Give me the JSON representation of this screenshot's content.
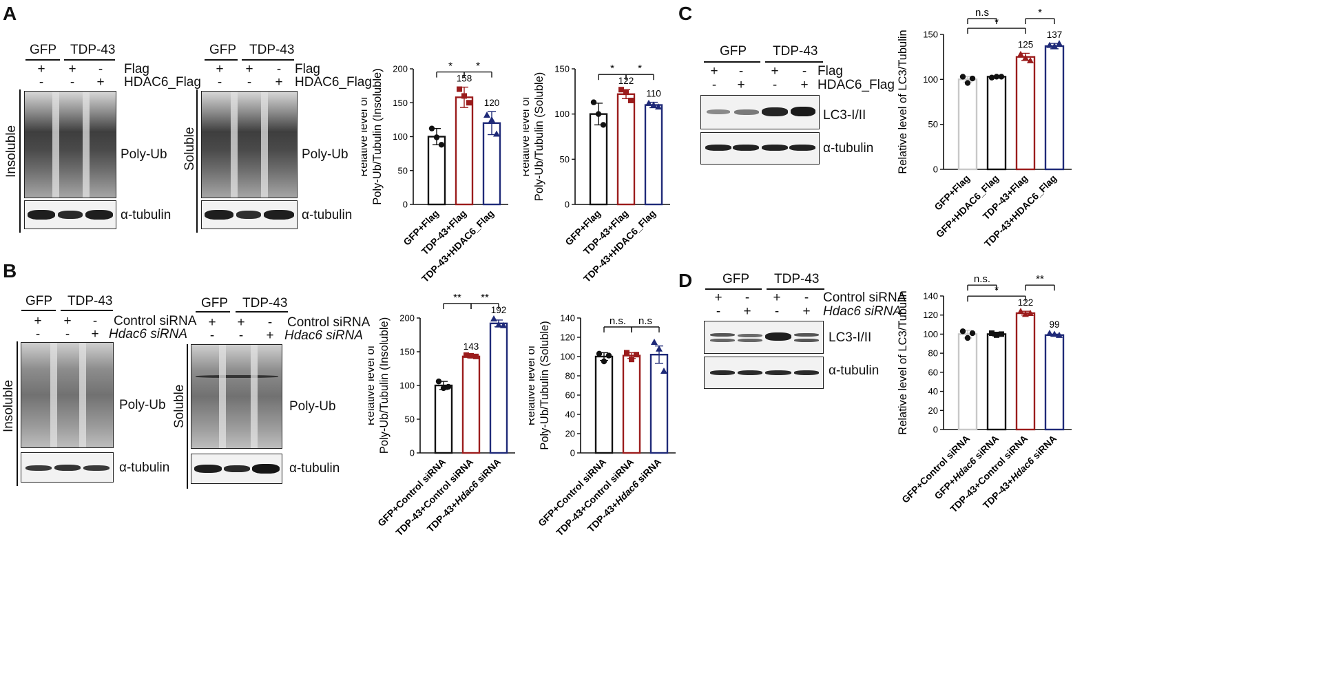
{
  "panels": {
    "A": {
      "letter": "A",
      "blot1": {
        "groups": [
          "GFP",
          "TDP-43"
        ],
        "row1_label": "Flag",
        "row2_label": "HDAC6_Flag",
        "row1_signs": [
          "+",
          "+",
          "-"
        ],
        "row2_signs": [
          "-",
          "-",
          "+"
        ],
        "side_label": "Insoluble",
        "main_label": "Poly-Ub",
        "loading_label": "α-tubulin"
      },
      "blot2": {
        "groups": [
          "GFP",
          "TDP-43"
        ],
        "row1_label": "Flag",
        "row2_label": "HDAC6_Flag",
        "row1_signs": [
          "+",
          "+",
          "-"
        ],
        "row2_signs": [
          "-",
          "-",
          "+"
        ],
        "side_label": "Soluble",
        "main_label": "Poly-Ub",
        "loading_label": "α-tubulin"
      }
    },
    "B": {
      "letter": "B",
      "blot1": {
        "groups": [
          "GFP",
          "TDP-43"
        ],
        "row1_label": "Control siRNA",
        "row2_label": "Hdac6 siRNA",
        "row1_signs": [
          "+",
          "+",
          "-"
        ],
        "row2_signs": [
          "-",
          "-",
          "+"
        ],
        "side_label": "Insoluble",
        "main_label": "Poly-Ub",
        "loading_label": "α-tubulin"
      },
      "blot2": {
        "groups": [
          "GFP",
          "TDP-43"
        ],
        "row1_label": "Control siRNA",
        "row2_label": "Hdac6 siRNA",
        "row1_signs": [
          "+",
          "+",
          "-"
        ],
        "row2_signs": [
          "-",
          "-",
          "+"
        ],
        "side_label": "Soluble",
        "main_label": "Poly-Ub",
        "loading_label": "α-tubulin"
      }
    },
    "C": {
      "letter": "C",
      "blot": {
        "groups": [
          "GFP",
          "TDP-43"
        ],
        "row1_label": "Flag",
        "row2_label": "HDAC6_Flag",
        "row1_signs": [
          "+",
          "-",
          "+",
          "-"
        ],
        "row2_signs": [
          "-",
          "+",
          "-",
          "+"
        ],
        "main_label": "LC3-I/II",
        "loading_label": "α-tubulin"
      }
    },
    "D": {
      "letter": "D",
      "blot": {
        "groups": [
          "GFP",
          "TDP-43"
        ],
        "row1_label": "Control siRNA",
        "row2_label": "Hdac6 siRNA",
        "row1_signs": [
          "+",
          "-",
          "+",
          "-"
        ],
        "row2_signs": [
          "-",
          "+",
          "-",
          "+"
        ],
        "main_label": "LC3-I/II",
        "loading_label": "α-tubulin"
      }
    }
  },
  "colors": {
    "black": "#111111",
    "red": "#9b1c1c",
    "blue": "#1f2a78",
    "gray": "#c8c8c8"
  },
  "chart_data": [
    {
      "id": "A1",
      "type": "bar",
      "categories": [
        "GFP+Flag",
        "TDP-43+Flag",
        "TDP-43+HDAC6_Flag"
      ],
      "values": [
        100,
        158,
        120
      ],
      "points": [
        [
          112,
          99,
          88
        ],
        [
          170,
          160,
          150
        ],
        [
          132,
          125,
          104
        ]
      ],
      "errors": [
        12,
        15,
        17
      ],
      "value_labels": [
        "",
        "158",
        "120"
      ],
      "colors": [
        "#111111",
        "#9b1c1c",
        "#1f2a78"
      ],
      "markers": [
        "circle",
        "square",
        "triangle"
      ],
      "ylabel_lines": [
        "Relative level of",
        "Poly-Ub/Tubulin (Insoluble)"
      ],
      "ylim": [
        0,
        200
      ],
      "yticks": [
        0,
        50,
        100,
        150,
        200
      ],
      "sig": [
        {
          "from": 0,
          "to": 1,
          "label": "*"
        },
        {
          "from": 1,
          "to": 2,
          "label": "*"
        }
      ]
    },
    {
      "id": "A2",
      "type": "bar",
      "categories": [
        "GFP+Flag",
        "TDP-43+Flag",
        "TDP-43+HDAC6_Flag"
      ],
      "values": [
        100,
        122,
        110
      ],
      "points": [
        [
          113,
          100,
          88
        ],
        [
          127,
          124,
          115
        ],
        [
          112,
          110,
          108
        ]
      ],
      "errors": [
        12,
        5,
        3
      ],
      "value_labels": [
        "",
        "122",
        "110"
      ],
      "colors": [
        "#111111",
        "#9b1c1c",
        "#1f2a78"
      ],
      "markers": [
        "circle",
        "square",
        "triangle"
      ],
      "ylabel_lines": [
        "Relative level of",
        "Poly-Ub/Tubulin (Soluble)"
      ],
      "ylim": [
        0,
        150
      ],
      "yticks": [
        0,
        50,
        100,
        150
      ],
      "sig": [
        {
          "from": 0,
          "to": 1,
          "label": "*"
        },
        {
          "from": 1,
          "to": 2,
          "label": "*"
        }
      ]
    },
    {
      "id": "C",
      "type": "bar",
      "categories": [
        "GFP+Flag",
        "GFP+HDAC6_Flag",
        "TDP-43+Flag",
        "TDP-43+HDAC6_Flag"
      ],
      "values": [
        100,
        103,
        125,
        137
      ],
      "points": [
        [
          103,
          96,
          101
        ],
        [
          102,
          103,
          103
        ],
        [
          128,
          124,
          121
        ],
        [
          138,
          137,
          140
        ]
      ],
      "errors": [
        3,
        1,
        4,
        3
      ],
      "value_labels": [
        "",
        "",
        "125",
        "137"
      ],
      "colors": [
        "#c8c8c8",
        "#111111",
        "#9b1c1c",
        "#1f2a78"
      ],
      "markers": [
        "circle",
        "circle",
        "triangle",
        "triangle"
      ],
      "ylabel_lines": [
        "Relative level of LC3/Tubulin"
      ],
      "ylim": [
        0,
        150
      ],
      "yticks": [
        0,
        50,
        100,
        150
      ],
      "sig": [
        {
          "from": 0,
          "to": 1,
          "label": "n.s"
        },
        {
          "from": 0,
          "to": 2,
          "label": "*"
        },
        {
          "from": 2,
          "to": 3,
          "label": "*"
        }
      ]
    },
    {
      "id": "B1",
      "type": "bar",
      "categories": [
        "GFP+Control siRNA",
        "TDP-43+Control siRNA",
        "TDP-43+Hdac6 siRNA"
      ],
      "values": [
        100,
        143,
        192
      ],
      "points": [
        [
          106,
          96,
          98
        ],
        [
          145,
          144,
          143
        ],
        [
          199,
          190,
          189
        ]
      ],
      "errors": [
        6,
        2,
        5
      ],
      "value_labels": [
        "",
        "143",
        "192"
      ],
      "colors": [
        "#111111",
        "#9b1c1c",
        "#1f2a78"
      ],
      "markers": [
        "circle",
        "square",
        "triangle"
      ],
      "ylabel_lines": [
        "Relative level of",
        "Poly-Ub/Tubulin (Insoluble)"
      ],
      "ylim": [
        0,
        200
      ],
      "yticks": [
        0,
        50,
        100,
        150,
        200
      ],
      "sig": [
        {
          "from": 0,
          "to": 1,
          "label": "**"
        },
        {
          "from": 1,
          "to": 2,
          "label": "**"
        }
      ]
    },
    {
      "id": "B2",
      "type": "bar",
      "categories": [
        "GFP+Control siRNA",
        "TDP-43+Control siRNA",
        "TDP-43+Hdac6 siRNA"
      ],
      "values": [
        100,
        101,
        102
      ],
      "points": [
        [
          103,
          95,
          101
        ],
        [
          104,
          97,
          102
        ],
        [
          115,
          108,
          85
        ]
      ],
      "errors": [
        4,
        3,
        9
      ],
      "value_labels": [
        "",
        "",
        ""
      ],
      "colors": [
        "#111111",
        "#9b1c1c",
        "#1f2a78"
      ],
      "markers": [
        "circle",
        "square",
        "triangle"
      ],
      "ylabel_lines": [
        "Relative level of",
        "Poly-Ub/Tubulin (Soluble)"
      ],
      "ylim": [
        0,
        140
      ],
      "yticks": [
        0,
        20,
        40,
        60,
        80,
        100,
        120,
        140
      ],
      "sig": [
        {
          "from": 0,
          "to": 1,
          "label": "n.s."
        },
        {
          "from": 1,
          "to": 2,
          "label": "n.s"
        }
      ]
    },
    {
      "id": "D",
      "type": "bar",
      "categories": [
        "GFP+Control siRNA",
        "GFP+Hdac6 siRNA",
        "TDP-43+Control siRNA",
        "TDP-43+Hdac6 siRNA"
      ],
      "values": [
        100,
        100,
        122,
        99
      ],
      "points": [
        [
          103,
          96,
          101
        ],
        [
          101,
          99,
          100
        ],
        [
          124,
          121,
          122
        ],
        [
          101,
          100,
          99
        ]
      ],
      "errors": [
        4,
        2,
        2,
        1
      ],
      "value_labels": [
        "",
        "",
        "122",
        "99"
      ],
      "colors": [
        "#c8c8c8",
        "#111111",
        "#9b1c1c",
        "#1f2a78"
      ],
      "markers": [
        "circle",
        "square",
        "triangle",
        "triangle"
      ],
      "ylabel_lines": [
        "Relative level of LC3/Tubulin"
      ],
      "ylim": [
        0,
        140
      ],
      "yticks": [
        0,
        20,
        40,
        60,
        80,
        100,
        120,
        140
      ],
      "sig": [
        {
          "from": 0,
          "to": 1,
          "label": "n.s."
        },
        {
          "from": 0,
          "to": 2,
          "label": "*"
        },
        {
          "from": 2,
          "to": 3,
          "label": "**"
        }
      ]
    }
  ]
}
